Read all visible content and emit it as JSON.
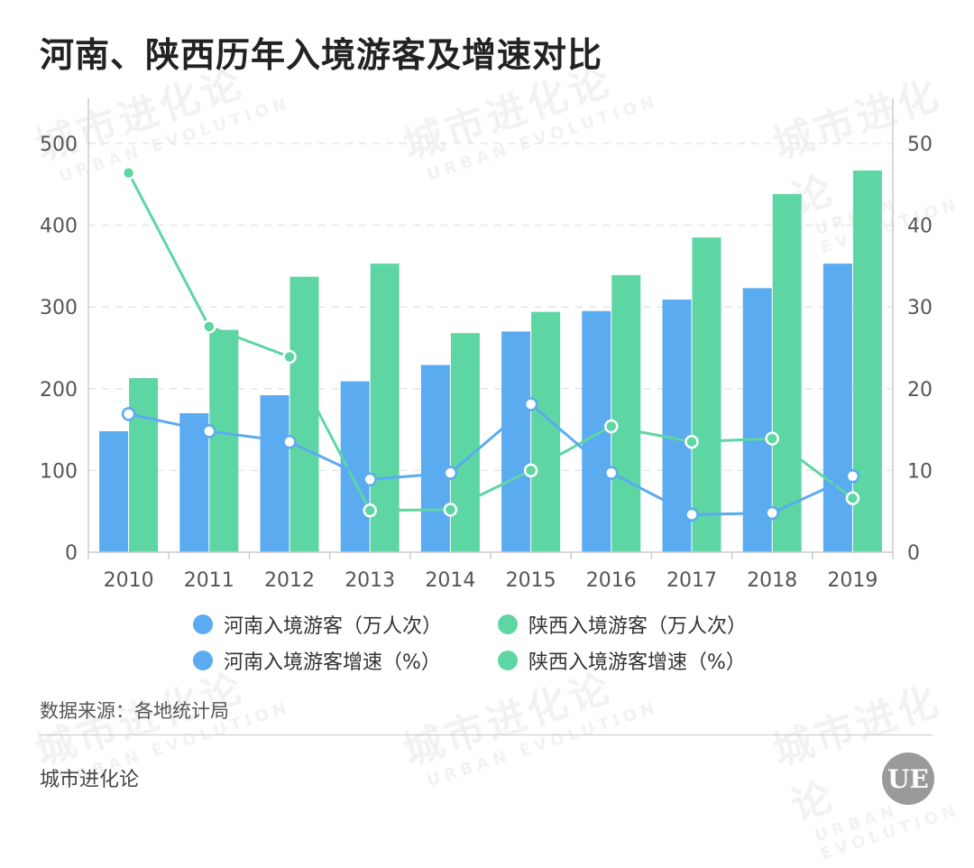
{
  "title": "河南、陕西历年入境游客及增速对比",
  "watermark": {
    "cn": "城市进化论",
    "en": "URBAN EVOLUTION"
  },
  "source": "数据来源：各地统计局",
  "brand": "城市进化论",
  "logo": {
    "text": "UE",
    "icon": "urban-evolution-logo-icon"
  },
  "colors": {
    "henan": "#5aabf0",
    "shaanxi": "#5dd6a4",
    "axis": "#cccccc",
    "grid": "#e6e6e6",
    "tick": "#555555"
  },
  "chart_data": {
    "type": "bar",
    "categories": [
      "2010",
      "2011",
      "2012",
      "2013",
      "2014",
      "2015",
      "2016",
      "2017",
      "2018",
      "2019"
    ],
    "series": [
      {
        "name": "河南入境游客（万人次）",
        "type": "bar",
        "axis": "left",
        "color": "#5aabf0",
        "values": [
          148,
          170,
          192,
          209,
          229,
          270,
          295,
          309,
          323,
          353
        ]
      },
      {
        "name": "陕西入境游客（万人次）",
        "type": "bar",
        "axis": "left",
        "color": "#5dd6a4",
        "values": [
          213,
          272,
          337,
          353,
          268,
          294,
          339,
          385,
          438,
          467
        ]
      },
      {
        "name": "河南入境游客增速（%）",
        "type": "line",
        "axis": "right",
        "color": "#5aabf0",
        "values": [
          16.9,
          14.8,
          13.5,
          8.9,
          9.7,
          18.1,
          9.7,
          4.6,
          4.8,
          9.3
        ]
      },
      {
        "name": "陕西入境游客增速（%）",
        "type": "line",
        "axis": "right",
        "color": "#5dd6a4",
        "values": [
          46.4,
          27.6,
          23.9,
          5.1,
          5.2,
          10.0,
          15.4,
          13.5,
          13.9,
          6.6
        ]
      }
    ],
    "y_left": {
      "min": 0,
      "max": 500,
      "ticks": [
        0,
        100,
        200,
        300,
        400,
        500
      ]
    },
    "y_right": {
      "min": 0,
      "max": 50,
      "ticks": [
        0,
        10,
        20,
        30,
        40,
        50
      ]
    },
    "grid": true,
    "legend_position": "bottom"
  }
}
